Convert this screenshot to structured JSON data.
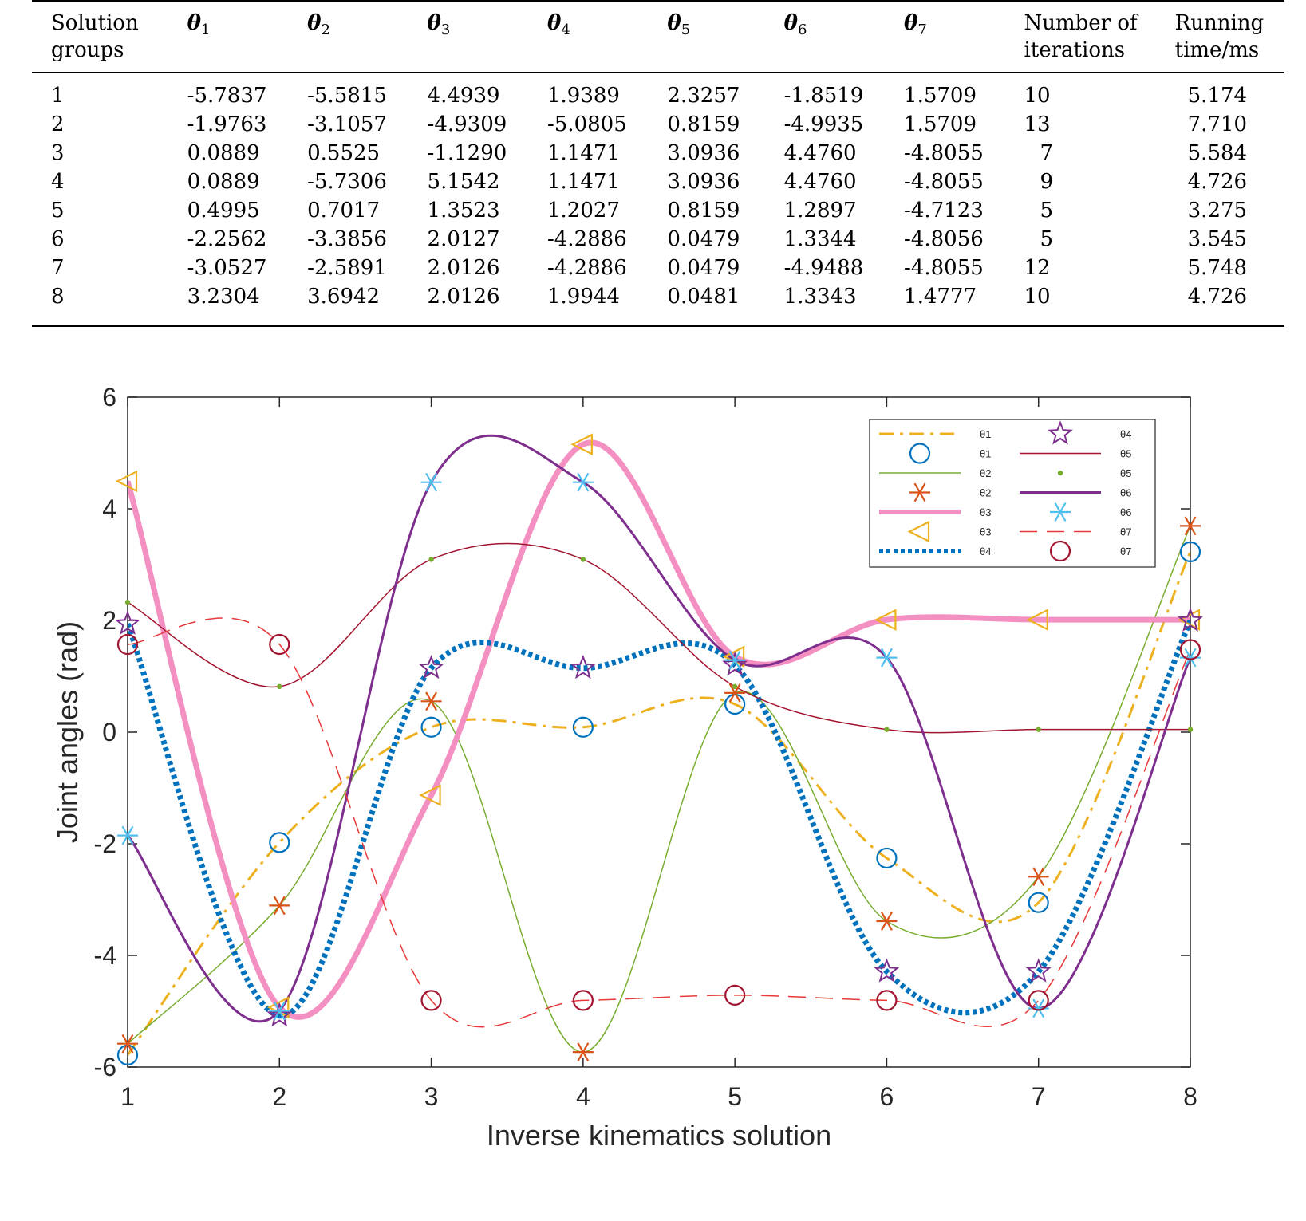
{
  "table": {
    "headers": [
      {
        "main": "Solution groups",
        "sub": ""
      },
      {
        "main": "θ",
        "sub": "1"
      },
      {
        "main": "θ",
        "sub": "2"
      },
      {
        "main": "θ",
        "sub": "3"
      },
      {
        "main": "θ",
        "sub": "4"
      },
      {
        "main": "θ",
        "sub": "5"
      },
      {
        "main": "θ",
        "sub": "6"
      },
      {
        "main": "θ",
        "sub": "7"
      },
      {
        "main": "Number of iterations",
        "sub": ""
      },
      {
        "main": "Running time/ms",
        "sub": ""
      }
    ],
    "rows": [
      [
        "1",
        "-5.7837",
        "-5.5815",
        "4.4939",
        "1.9389",
        "2.3257",
        "-1.8519",
        "1.5709",
        "10",
        "5.174"
      ],
      [
        "2",
        "-1.9763",
        "-3.1057",
        "-4.9309",
        "-5.0805",
        "0.8159",
        "-4.9935",
        "1.5709",
        "13",
        "7.710"
      ],
      [
        "3",
        "0.0889",
        "0.5525",
        "-1.1290",
        "1.1471",
        "3.0936",
        "4.4760",
        "-4.8055",
        "7",
        "5.584"
      ],
      [
        "4",
        "0.0889",
        "-5.7306",
        "5.1542",
        "1.1471",
        "3.0936",
        "4.4760",
        "-4.8055",
        "9",
        "4.726"
      ],
      [
        "5",
        "0.4995",
        "0.7017",
        "1.3523",
        "1.2027",
        "0.8159",
        "1.2897",
        "-4.7123",
        "5",
        "3.275"
      ],
      [
        "6",
        "-2.2562",
        "-3.3856",
        "2.0127",
        "-4.2886",
        "0.0479",
        "1.3344",
        "-4.8056",
        "5",
        "3.545"
      ],
      [
        "7",
        "-3.0527",
        "-2.5891",
        "2.0126",
        "-4.2886",
        "0.0479",
        "-4.9488",
        "-4.8055",
        "12",
        "5.748"
      ],
      [
        "8",
        "3.2304",
        "3.6942",
        "2.0126",
        "1.9944",
        "0.0481",
        "1.3343",
        "1.4777",
        "10",
        "4.726"
      ]
    ]
  },
  "chart_data": {
    "type": "line",
    "xlabel": "Inverse kinematics solution",
    "ylabel": "Joint angles (rad)",
    "x": [
      1,
      2,
      3,
      4,
      5,
      6,
      7,
      8
    ],
    "xlim": [
      1,
      8
    ],
    "ylim": [
      -6,
      6
    ],
    "xticks": [
      "1",
      "2",
      "3",
      "4",
      "5",
      "6",
      "7",
      "8"
    ],
    "yticks": [
      "-6",
      "-4",
      "-2",
      "0",
      "2",
      "4",
      "6"
    ],
    "legend_position": "top-right",
    "series": [
      {
        "name": "θ1",
        "color": "#EDB120",
        "line": "dashdot",
        "width": 3,
        "marker": "circle",
        "marker_color": "#0072BD",
        "values": [
          -5.7837,
          -1.9763,
          0.0889,
          0.0889,
          0.4995,
          -2.2562,
          -3.0527,
          3.2304
        ]
      },
      {
        "name": "θ2",
        "color": "#77AC30",
        "line": "solid",
        "width": 1.5,
        "marker": "asterisk",
        "marker_color": "#D95319",
        "values": [
          -5.5815,
          -3.1057,
          0.5525,
          -5.7306,
          0.7017,
          -3.3856,
          -2.5891,
          3.6942
        ]
      },
      {
        "name": "θ3",
        "color": "#F48FC1",
        "line": "solid",
        "width": 7,
        "marker": "triangle-left",
        "marker_color": "#EDB120",
        "values": [
          4.4939,
          -4.9309,
          -1.129,
          5.1542,
          1.3523,
          2.0127,
          2.0126,
          2.0126
        ]
      },
      {
        "name": "θ4",
        "color": "#0072BD",
        "line": "dotted",
        "width": 7,
        "marker": "star",
        "marker_color": "#7E2F8E",
        "values": [
          1.9389,
          -5.0805,
          1.1471,
          1.1471,
          1.2027,
          -4.2886,
          -4.2886,
          1.9944
        ]
      },
      {
        "name": "θ5",
        "color": "#A2142F",
        "line": "solid",
        "width": 1.5,
        "marker": "dot",
        "marker_color": "#77AC30",
        "values": [
          2.3257,
          0.8159,
          3.0936,
          3.0936,
          0.8159,
          0.0479,
          0.0479,
          0.0481
        ]
      },
      {
        "name": "θ6",
        "color": "#7E2F8E",
        "line": "solid",
        "width": 3,
        "marker": "asterisk",
        "marker_color": "#4DBEEE",
        "values": [
          -1.8519,
          -4.9935,
          4.476,
          4.476,
          1.2897,
          1.3344,
          -4.9488,
          1.3343
        ]
      },
      {
        "name": "θ7",
        "color": "#E8383A",
        "line": "dashed",
        "width": 1.5,
        "marker": "circle",
        "marker_color": "#A2142F",
        "values": [
          1.5709,
          1.5709,
          -4.8055,
          -4.8055,
          -4.7123,
          -4.8056,
          -4.8055,
          1.4777
        ]
      }
    ]
  }
}
